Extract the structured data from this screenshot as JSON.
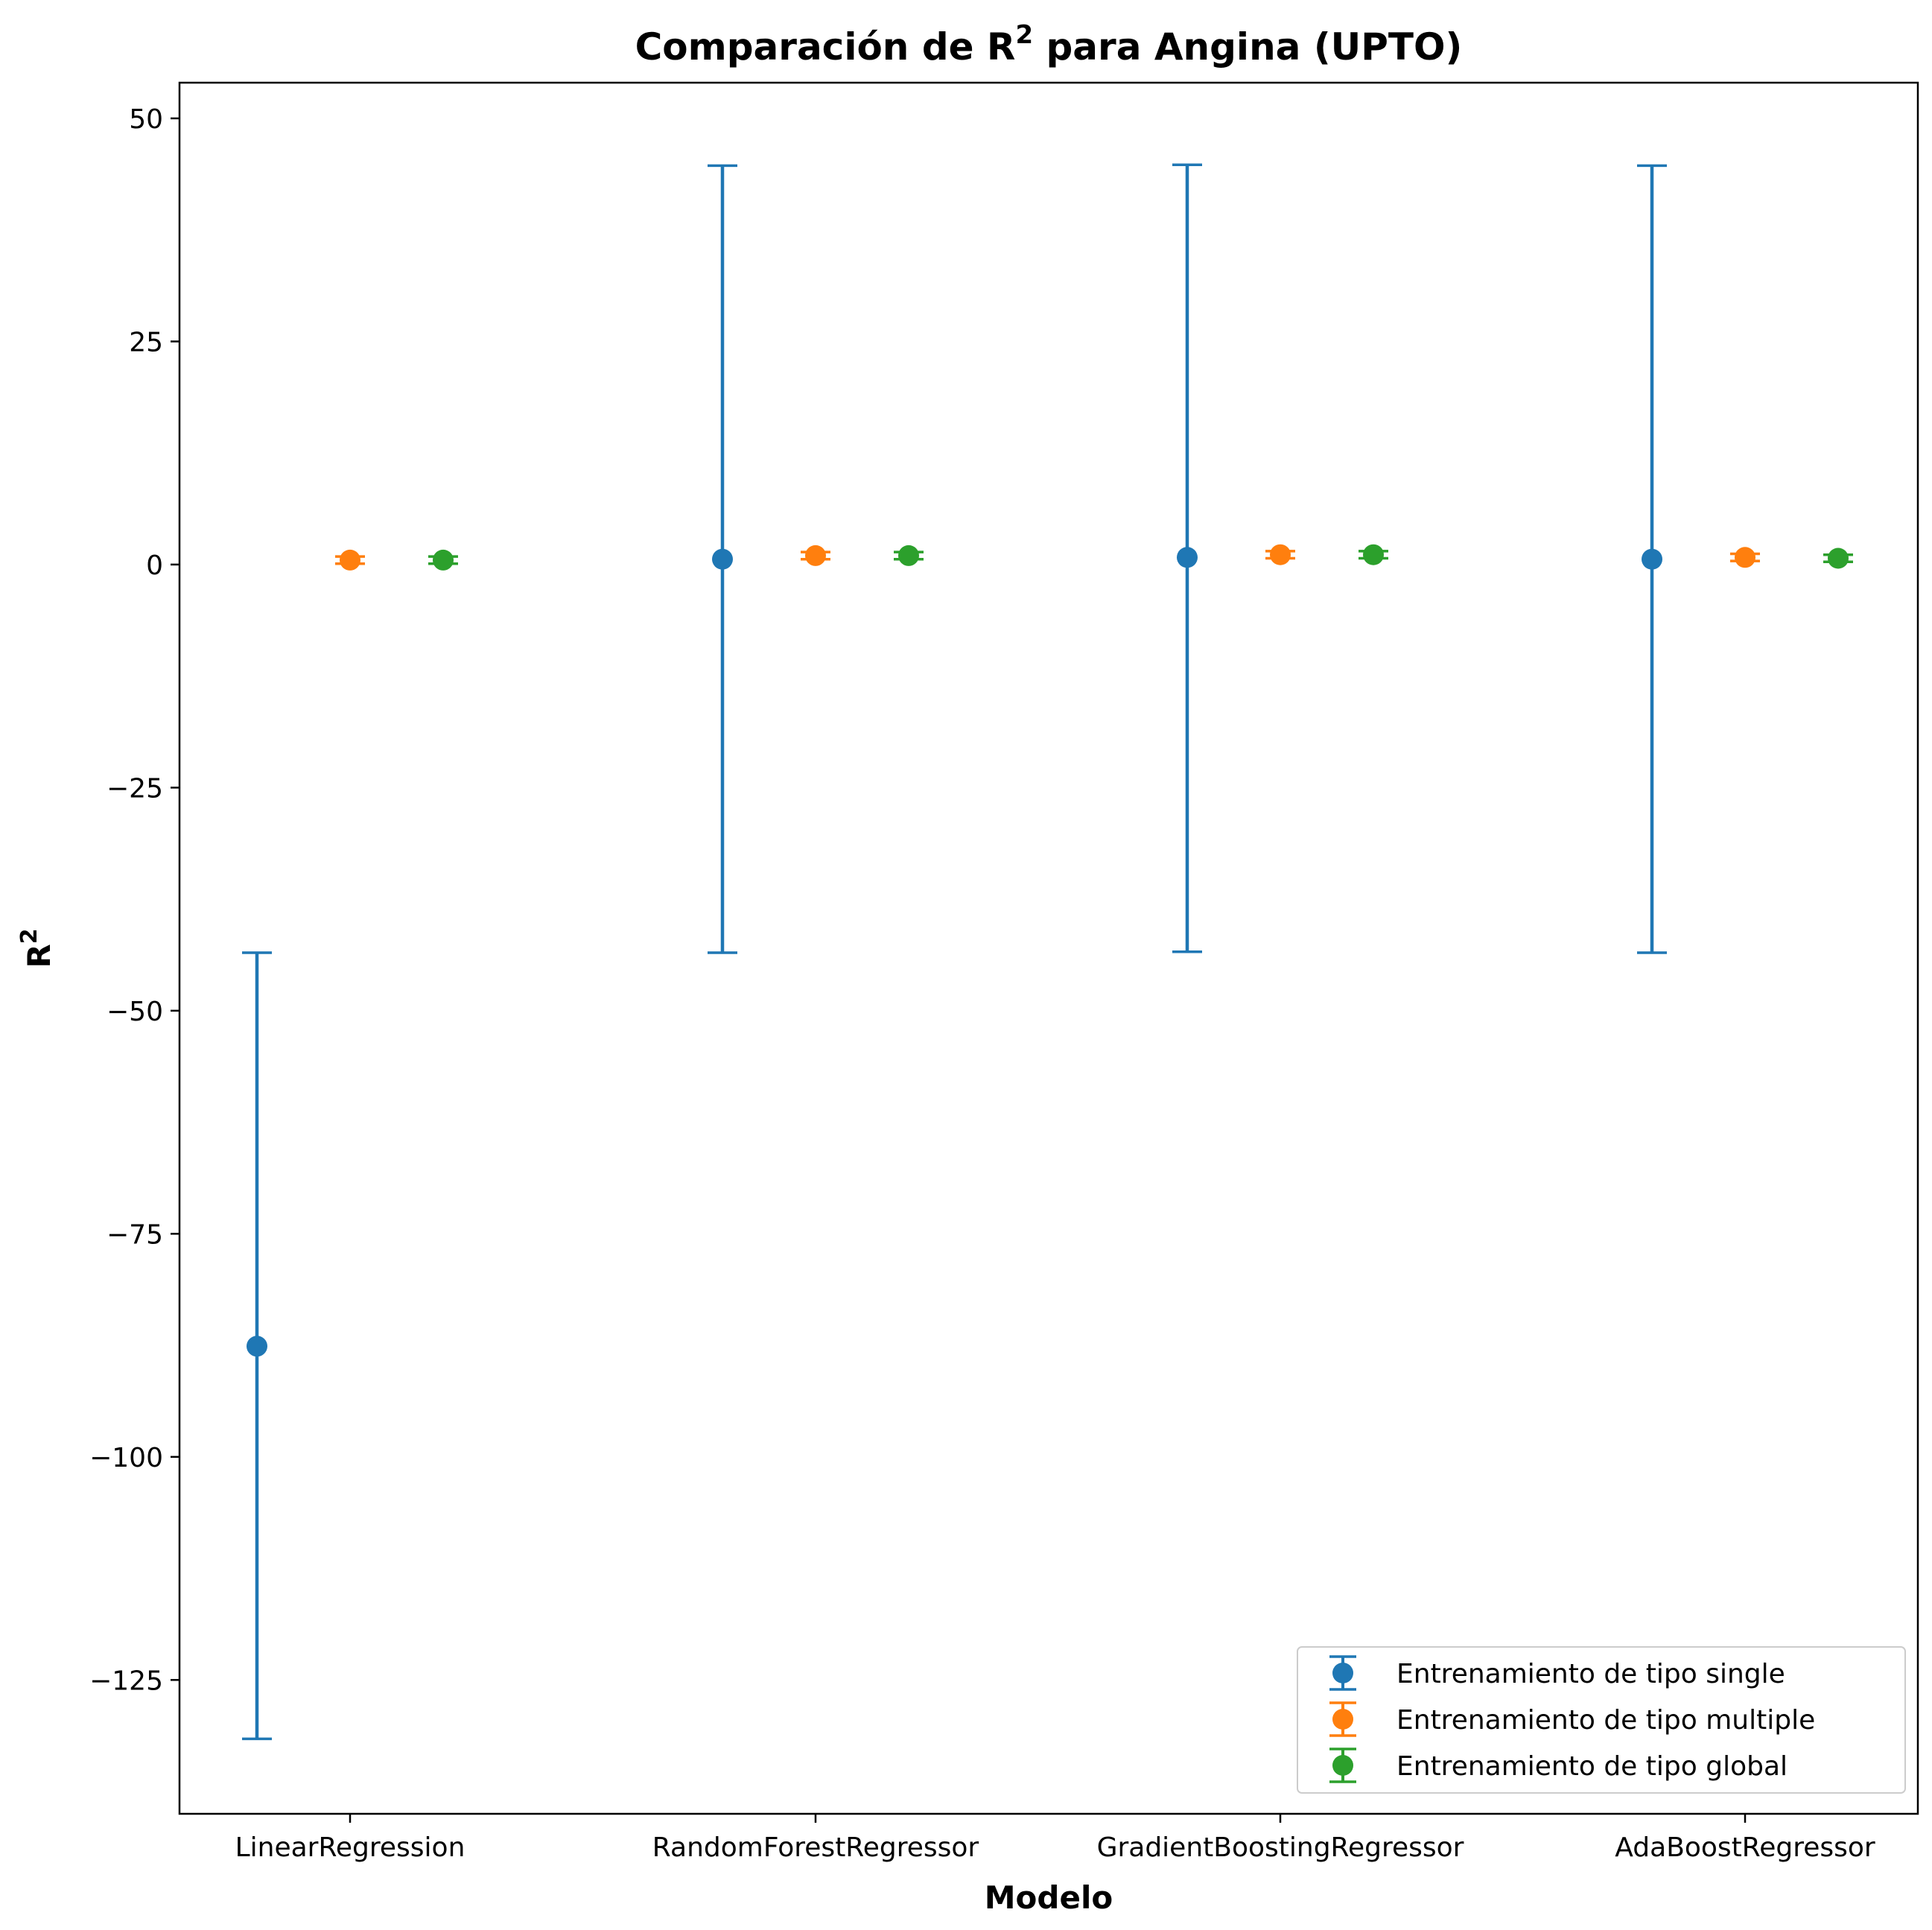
{
  "chart_data": {
    "type": "scatter",
    "title": "Comparación de R",
    "title_sup": "2",
    "title_suffix": " para Angina (UPTO)",
    "xlabel": "Modelo",
    "ylabel": "R",
    "ylabel_sup": "2",
    "categories": [
      "LinearRegression",
      "RandomForestRegressor",
      "GradientBoostingRegressor",
      "AdaBoostRegressor"
    ],
    "ylim": [
      -140,
      54
    ],
    "yticks": [
      50,
      25,
      0,
      -25,
      -50,
      -75,
      -100,
      -125
    ],
    "ytick_labels": [
      "50",
      "25",
      "0",
      "−25",
      "−50",
      "−75",
      "−100",
      "−125"
    ],
    "grid": false,
    "legend_position": "lower right",
    "series": [
      {
        "name": "Entrenamiento de tipo single",
        "color": "#1f77b4",
        "offset": -1,
        "values": [
          -87.6,
          0.6,
          0.8,
          0.6
        ],
        "err_low": [
          -131.6,
          -43.5,
          -43.4,
          -43.5
        ],
        "err_high": [
          -43.5,
          44.7,
          44.8,
          44.7
        ]
      },
      {
        "name": "Entrenamiento  de tipo multiple",
        "color": "#ff7f0e",
        "offset": 0,
        "values": [
          0.5,
          1.0,
          1.1,
          0.8
        ],
        "err_low": [
          0.1,
          0.6,
          0.7,
          0.4
        ],
        "err_high": [
          0.9,
          1.4,
          1.5,
          1.2
        ]
      },
      {
        "name": "Entrenamiento de tipo global",
        "color": "#2ca02c",
        "offset": 1,
        "values": [
          0.5,
          1.0,
          1.1,
          0.7
        ],
        "err_low": [
          0.1,
          0.6,
          0.7,
          0.3
        ],
        "err_high": [
          0.9,
          1.4,
          1.5,
          1.1
        ]
      }
    ]
  }
}
